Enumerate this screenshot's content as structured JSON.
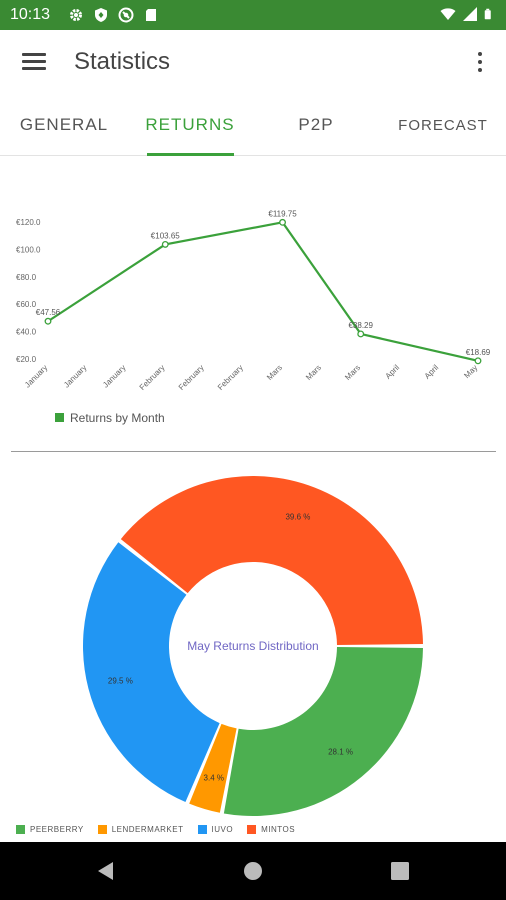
{
  "status_bar": {
    "time": "10:13",
    "icons_left": [
      "gear-icon",
      "shield-icon",
      "vpn-icon",
      "sd-card-icon"
    ],
    "icons_right": [
      "wifi-icon",
      "signal-icon",
      "battery-icon"
    ],
    "background": "#3a8a33"
  },
  "app_bar": {
    "title": "Statistics"
  },
  "tabs": [
    {
      "label": "GENERAL",
      "active": false
    },
    {
      "label": "RETURNS",
      "active": true
    },
    {
      "label": "P2P",
      "active": false
    },
    {
      "label": "FORECAST",
      "active": false
    }
  ],
  "colors": {
    "accent": "#3ba13b",
    "peerberry": "#4caf50",
    "lendermarket": "#ff9800",
    "iuvo": "#2196f3",
    "mintos": "#ff5722",
    "center_title": "#7067c4"
  },
  "chart_data": [
    {
      "type": "line",
      "series": [
        {
          "name": "Returns by Month",
          "color": "#3ba13b",
          "points": [
            {
              "label": "€47.56",
              "value": 47.56
            },
            {
              "label": "€103.65",
              "value": 103.65
            },
            {
              "label": "€119.75",
              "value": 119.75
            },
            {
              "label": "€38.29",
              "value": 38.29
            },
            {
              "label": "€18.69",
              "value": 18.69
            }
          ]
        }
      ],
      "x_tick_labels": [
        "January",
        "January",
        "January",
        "February",
        "February",
        "February",
        "Mars",
        "Mars",
        "Mars",
        "April",
        "April",
        "May"
      ],
      "y_tick_labels": [
        "€20.0",
        "€40.0",
        "€60.0",
        "€80.0",
        "€100.0",
        "€120.0"
      ],
      "ylim": [
        20,
        120
      ],
      "legend": "Returns by Month",
      "legend_placement": "bottom-left",
      "grid": false
    },
    {
      "type": "pie",
      "donut": true,
      "center_title": "May Returns Distribution",
      "slices": [
        {
          "name": "MINTOS",
          "value": 39.6,
          "label": "39.6 %",
          "color": "#ff5722"
        },
        {
          "name": "PEERBERRY",
          "value": 28.1,
          "label": "28.1 %",
          "color": "#4caf50"
        },
        {
          "name": "LENDERMARKET",
          "value": 3.4,
          "label": "3.4 %",
          "color": "#ff9800"
        },
        {
          "name": "IUVO",
          "value": 29.5,
          "label": "29.5 %",
          "color": "#2196f3"
        }
      ],
      "legend": [
        {
          "name": "PEERBERRY",
          "color": "#4caf50"
        },
        {
          "name": "LENDERMARKET",
          "color": "#ff9800"
        },
        {
          "name": "IUVO",
          "color": "#2196f3"
        },
        {
          "name": "MINTOS",
          "color": "#ff5722"
        }
      ],
      "legend_placement": "bottom"
    }
  ],
  "nav_bar": {
    "buttons": [
      "back-icon",
      "home-icon",
      "recents-icon"
    ]
  }
}
